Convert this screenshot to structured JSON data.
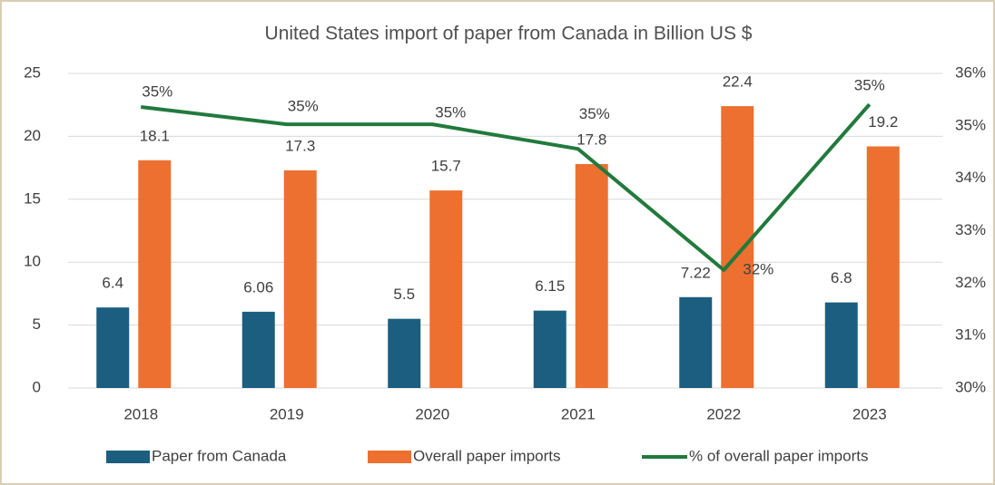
{
  "chart_data": {
    "type": "bar-line",
    "title": "United States import of paper from Canada in Billion US $",
    "categories": [
      "2018",
      "2019",
      "2020",
      "2021",
      "2022",
      "2023"
    ],
    "series": [
      {
        "name": "Paper from Canada",
        "color": "#1b5e80",
        "type": "bar",
        "values": [
          6.4,
          6.06,
          5.5,
          6.15,
          7.22,
          6.8
        ]
      },
      {
        "name": "Overall paper imports",
        "color": "#ed7030",
        "type": "bar",
        "values": [
          18.1,
          17.3,
          15.7,
          17.8,
          22.4,
          19.2
        ]
      },
      {
        "name": "% of overall paper imports",
        "color": "#217a3c",
        "type": "line",
        "axis": "y2",
        "values": [
          35.36,
          35.03,
          35.03,
          34.56,
          32.25,
          35.41
        ],
        "value_labels": [
          "35%",
          "35%",
          "35%",
          "35%",
          "32%",
          "35%"
        ]
      }
    ],
    "ylim": [
      0,
      25
    ],
    "yticks": [
      0,
      5,
      10,
      15,
      20,
      25
    ],
    "y2lim": [
      30,
      36
    ],
    "y2ticks": [
      {
        "value": 30,
        "label": "30%"
      },
      {
        "value": 31,
        "label": "31%"
      },
      {
        "value": 32,
        "label": "32%"
      },
      {
        "value": 33,
        "label": "33%"
      },
      {
        "value": 34,
        "label": "34%"
      },
      {
        "value": 35,
        "label": "35%"
      },
      {
        "value": 36,
        "label": "36%"
      }
    ],
    "grid": true,
    "legend": "bottom"
  }
}
